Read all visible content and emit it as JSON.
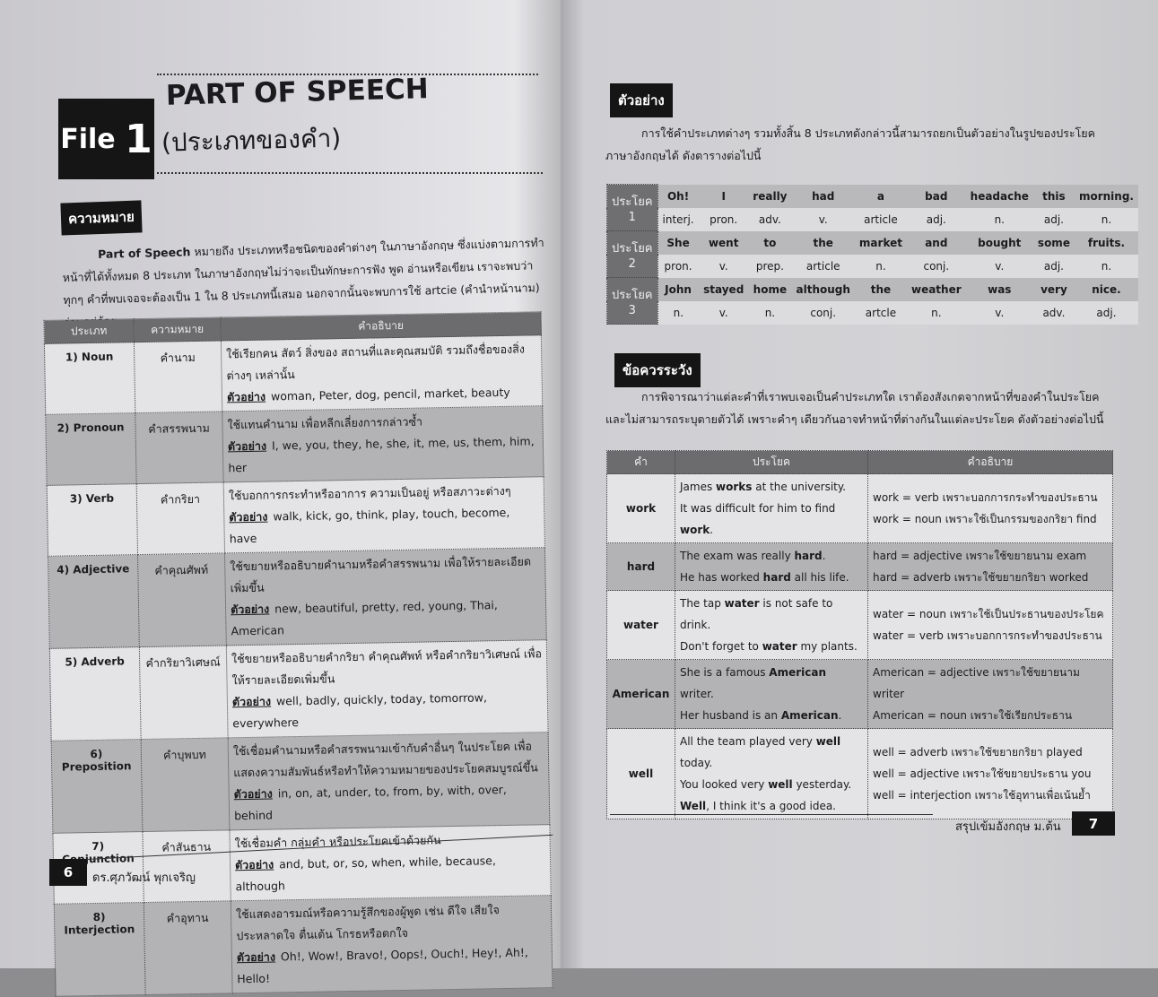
{
  "left_page": {
    "file_label": "File",
    "file_number": "1",
    "title": "PART OF SPEECH",
    "subtitle": "(ประเภทของคำ)",
    "section_label": "ความหมาย",
    "intro_bold": "Part of Speech",
    "intro_text": " หมายถึง ประเภทหรือชนิดของคำต่างๆ ในภาษาอังกฤษ ซึ่งแบ่งตามการทำหน้าที่ได้ทั้งหมด 8 ประเภท ในภาษาอังกฤษไม่ว่าจะเป็นทักษะการฟัง พูด อ่านหรือเขียน เราจะพบว่าทุกๆ คำที่พบเจอจะต้องเป็น 1 ใน 8 ประเภทนี้เสมอ นอกจากนั้นจะพบการใช้ artcie (คำนำหน้านาม) ร่วมอยู่ด้วย",
    "table": {
      "headers": [
        "ประเภท",
        "ความหมาย",
        "คำอธิบาย"
      ],
      "example_label": "ตัวอย่าง",
      "rows": [
        {
          "type": "1) Noun",
          "meaning": "คำนาม",
          "desc": "ใช้เรียกคน สัตว์ สิ่งของ สถานที่และคุณสมบัติ รวมถึงชื่อของสิ่งต่างๆ เหล่านั้น",
          "example": "woman, Peter, dog, pencil, market, beauty"
        },
        {
          "type": "2) Pronoun",
          "meaning": "คำสรรพนาม",
          "desc": "ใช้แทนคำนาม เพื่อหลีกเลี่ยงการกล่าวซ้ำ",
          "example": "I, we, you, they, he, she, it, me, us, them, him, her"
        },
        {
          "type": "3) Verb",
          "meaning": "คำกริยา",
          "desc": "ใช้บอกการกระทำหรืออาการ ความเป็นอยู่ หรือสภาวะต่างๆ",
          "example": "walk, kick, go, think, play, touch, become, have"
        },
        {
          "type": "4) Adjective",
          "meaning": "คำคุณศัพท์",
          "desc": "ใช้ขยายหรืออธิบายคำนามหรือคำสรรพนาม เพื่อให้รายละเอียดเพิ่มขึ้น",
          "example": "new, beautiful, pretty, red, young, Thai, American"
        },
        {
          "type": "5) Adverb",
          "meaning": "คำกริยาวิเศษณ์",
          "desc": "ใช้ขยายหรืออธิบายคำกริยา คำคุณศัพท์ หรือคำกริยาวิเศษณ์ เพื่อให้รายละเอียดเพิ่มขึ้น",
          "example": "well, badly, quickly, today, tomorrow, everywhere"
        },
        {
          "type": "6) Preposition",
          "meaning": "คำบุพบท",
          "desc": "ใช้เชื่อมคำนามหรือคำสรรพนามเข้ากับคำอื่นๆ ในประโยค เพื่อแสดงความสัมพันธ์หรือทำให้ความหมายของประโยคสมบูรณ์ขึ้น",
          "example": "in, on, at, under, to, from, by, with, over, behind"
        },
        {
          "type": "7) Conjunction",
          "meaning": "คำสันธาน",
          "desc": "ใช้เชื่อมคำ กลุ่มคำ หรือประโยคเข้าด้วยกัน",
          "example": "and, but, or, so, when, while, because, although"
        },
        {
          "type": "8) Interjection",
          "meaning": "คำอุทาน",
          "desc": "ใช้แสดงอารมณ์หรือความรู้สึกของผู้พูด เช่น ดีใจ เสียใจ ประหลาดใจ ตื่นเต้น โกรธหรือตกใจ",
          "example": "Oh!, Wow!, Bravo!, Oops!, Ouch!, Hey!, Ah!, Hello!"
        }
      ]
    },
    "page_number": "6",
    "author": "ดร.ศุภวัฒน์ พุกเจริญ"
  },
  "right_page": {
    "example_label": "ตัวอย่าง",
    "example_intro": "การใช้คำประเภทต่างๆ รวมทั้งสิ้น 8 ประเภทดังกล่าวนี้สามารถยกเป็นตัวอย่างในรูปของประโยคภาษาอังกฤษได้ ดังตารางต่อไปนี้",
    "sentences": [
      {
        "label": "ประโยค 1",
        "words": [
          "Oh!",
          "I",
          "really",
          "had",
          "a",
          "bad",
          "headache",
          "this",
          "morning."
        ],
        "tags": [
          "interj.",
          "pron.",
          "adv.",
          "v.",
          "article",
          "adj.",
          "n.",
          "adj.",
          "n."
        ]
      },
      {
        "label": "ประโยค 2",
        "words": [
          "She",
          "went",
          "to",
          "the",
          "market",
          "and",
          "bought",
          "some",
          "fruits."
        ],
        "tags": [
          "pron.",
          "v.",
          "prep.",
          "article",
          "n.",
          "conj.",
          "v.",
          "adj.",
          "n."
        ]
      },
      {
        "label": "ประโยค 3",
        "words": [
          "John",
          "stayed",
          "home",
          "although",
          "the",
          "weather",
          "was",
          "very",
          "nice."
        ],
        "tags": [
          "n.",
          "v.",
          "n.",
          "conj.",
          "artcle",
          "n.",
          "v.",
          "adv.",
          "adj."
        ]
      }
    ],
    "caution_label": "ข้อควรระวัง",
    "caution_intro": "การพิจารณาว่าแต่ละคำที่เราพบเจอเป็นคำประเภทใด เราต้องสังเกตจากหน้าที่ของคำในประโยค และไม่สามารถระบุตายตัวได้ เพราะคำๆ เดียวกันอาจทำหน้าที่ต่างกันในแต่ละประโยค ดังตัวอย่างต่อไปนี้",
    "caution_table": {
      "headers": [
        "คำ",
        "ประโยค",
        "คำอธิบาย"
      ],
      "rows": [
        {
          "word": "work",
          "items": [
            {
              "pre": "James ",
              "bold": "works",
              "post": " at the university.",
              "expl": "work = verb เพราะบอกการกระทำของประธาน"
            },
            {
              "pre": "It was difficult for him to find ",
              "bold": "work",
              "post": ".",
              "expl": "work = noun เพราะใช้เป็นกรรมของกริยา find"
            }
          ]
        },
        {
          "word": "hard",
          "items": [
            {
              "pre": "The exam was really ",
              "bold": "hard",
              "post": ".",
              "expl": "hard = adjective เพราะใช้ขยายนาม exam"
            },
            {
              "pre": "He has worked ",
              "bold": "hard",
              "post": " all his life.",
              "expl": "hard = adverb เพราะใช้ขยายกริยา worked"
            }
          ]
        },
        {
          "word": "water",
          "items": [
            {
              "pre": "The tap ",
              "bold": "water",
              "post": " is not safe to drink.",
              "expl": "water = noun เพราะใช้เป็นประธานของประโยค"
            },
            {
              "pre": "Don't forget to ",
              "bold": "water",
              "post": " my plants.",
              "expl": "water = verb เพราะบอกการกระทำของประธาน"
            }
          ]
        },
        {
          "word": "American",
          "items": [
            {
              "pre": "She is a famous ",
              "bold": "American",
              "post": " writer.",
              "expl": "American = adjective เพราะใช้ขยายนาม writer"
            },
            {
              "pre": "Her husband is an ",
              "bold": "American",
              "post": ".",
              "expl": "American = noun เพราะใช้เรียกประธาน"
            }
          ]
        },
        {
          "word": "well",
          "items": [
            {
              "pre": "All the team played very ",
              "bold": "well",
              "post": " today.",
              "expl": "well = adverb เพราะใช้ขยายกริยา played"
            },
            {
              "pre": "You looked very ",
              "bold": "well",
              "post": " yesterday.",
              "expl": "well = adjective เพราะใช้ขยายประธาน you"
            },
            {
              "pre": "",
              "bold": "Well",
              "post": ", I think it's a good idea.",
              "expl": "well = interjection เพราะใช้อุทานเพื่อเน้นย้ำ"
            }
          ]
        }
      ]
    },
    "book_title": "สรุปเข้มอังกฤษ ม.ต้น",
    "page_number": "7"
  }
}
